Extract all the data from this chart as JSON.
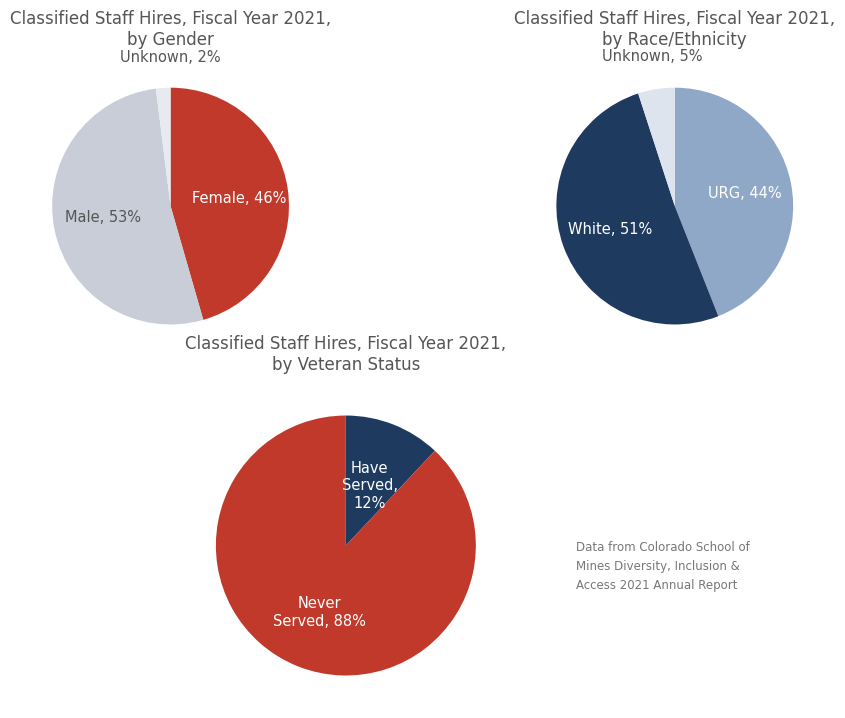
{
  "background_color": "#ffffff",
  "title_color": "#555555",
  "title_fontsize": 12,
  "label_fontsize": 10.5,
  "footnote_fontsize": 8.5,
  "footnote_color": "#777777",
  "footnote_text": "Data from Colorado School of\nMines Diversity, Inclusion &\nAccess 2021 Annual Report",
  "chart1": {
    "title": "Classified Staff Hires, Fiscal Year 2021,\nby Gender",
    "values": [
      46,
      53,
      2
    ],
    "labels": [
      "Female, 46%",
      "Male, 53%",
      "Unknown, 2%"
    ],
    "colors": [
      "#c0392b",
      "#c8cdd8",
      "#e8eaf0"
    ],
    "startangle": 90,
    "label_colors": [
      "#ffffff",
      "#555555",
      "#555555"
    ]
  },
  "chart2": {
    "title": "Classified Staff Hires, Fiscal Year 2021,\nby Race/Ethnicity",
    "values": [
      44,
      51,
      5
    ],
    "labels": [
      "URG, 44%",
      "White, 51%",
      "Unknown, 5%"
    ],
    "colors": [
      "#8fa8c8",
      "#1e3a5f",
      "#dde4ed"
    ],
    "startangle": 90,
    "label_colors": [
      "#ffffff",
      "#ffffff",
      "#555555"
    ]
  },
  "chart3": {
    "title": "Classified Staff Hires, Fiscal Year 2021,\nby Veteran Status",
    "values": [
      12,
      88
    ],
    "labels": [
      "Have\nServed,\n12%",
      "Never\nServed, 88%"
    ],
    "colors": [
      "#1e3a5f",
      "#c0392b"
    ],
    "startangle": 90,
    "label_colors": [
      "#ffffff",
      "#ffffff"
    ]
  }
}
